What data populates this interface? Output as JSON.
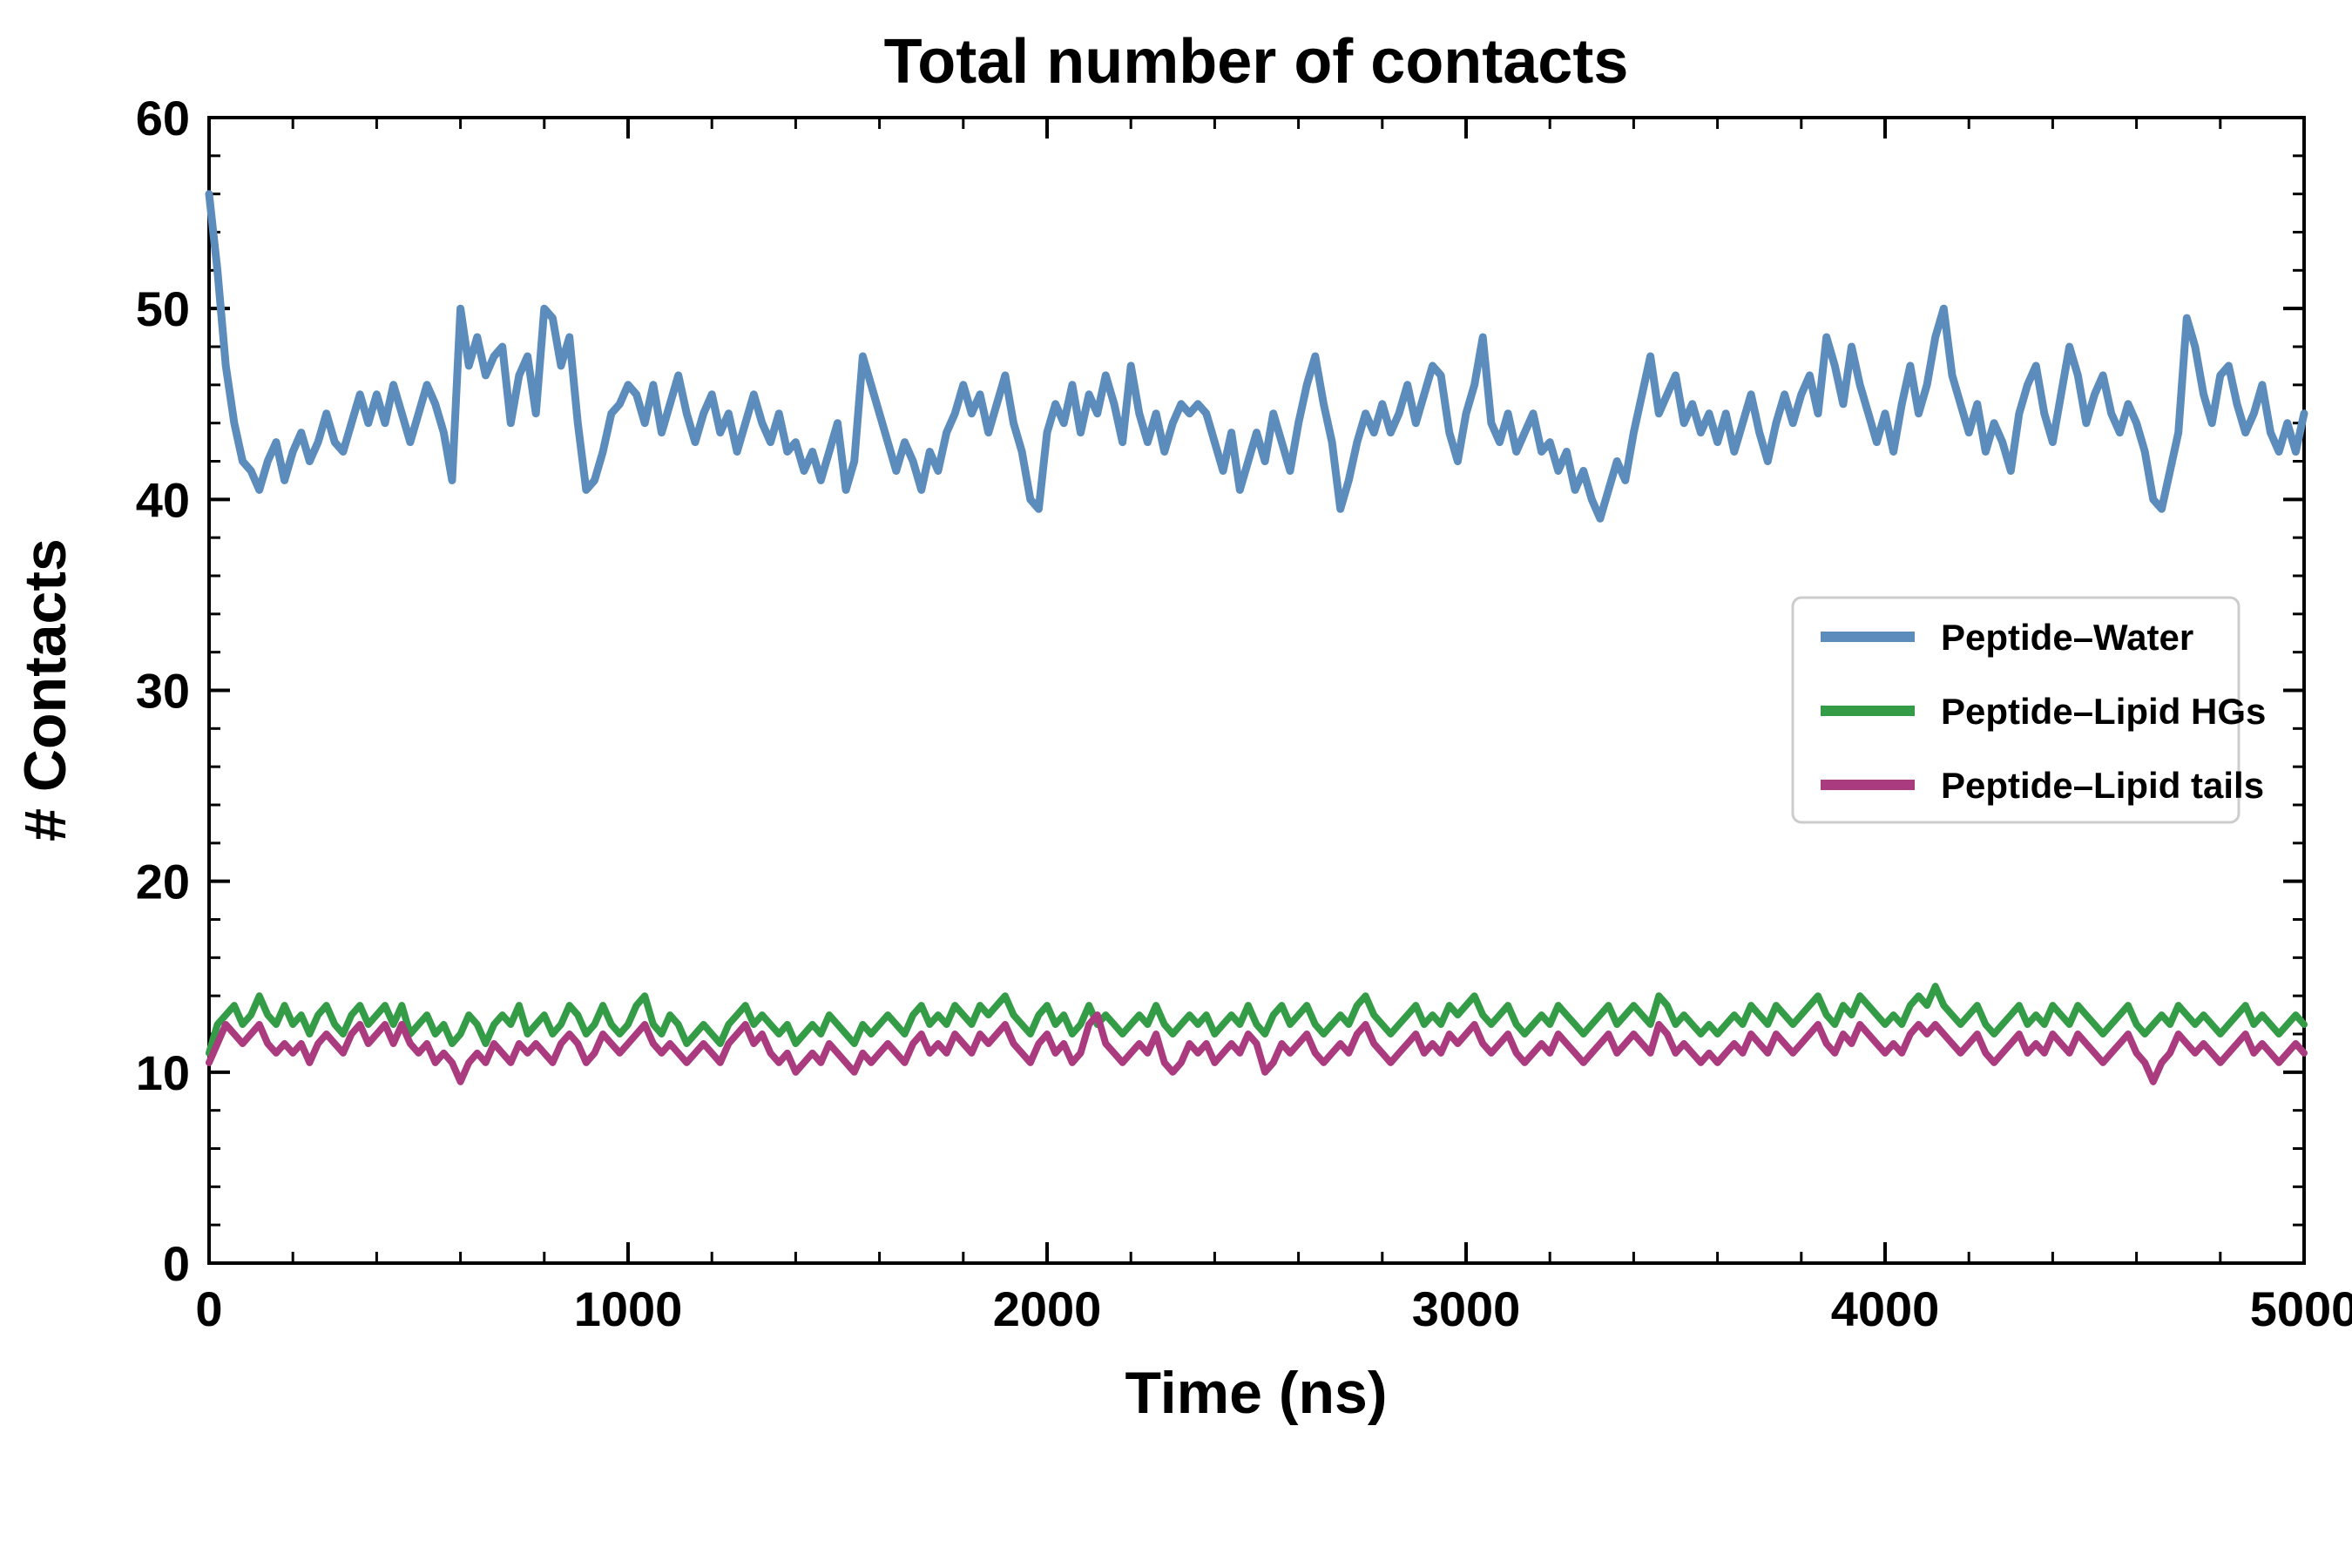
{
  "chart": {
    "title": "Total number of contacts",
    "xlabel": "Time (ns)",
    "ylabel": "# Contacts"
  },
  "axes": {
    "x_ticks": [
      0,
      1000,
      2000,
      3000,
      4000,
      5000
    ],
    "y_ticks": [
      0,
      10,
      20,
      30,
      40,
      50,
      60
    ],
    "x_minor_step": 200,
    "y_minor_step": 2,
    "xlim": [
      0,
      5000
    ],
    "ylim": [
      0,
      60
    ],
    "axis_color": "#000000"
  },
  "legend": {
    "border_color": "#cccccc",
    "background": "#ffffff",
    "items": [
      {
        "label": "Peptide–Water",
        "color": "#5b8cbc"
      },
      {
        "label": "Peptide–Lipid HGs",
        "color": "#349b46"
      },
      {
        "label": "Peptide–Lipid tails",
        "color": "#aa3b7f"
      }
    ]
  },
  "chart_data": {
    "type": "line",
    "title": "Total number of contacts",
    "xlabel": "Time (ns)",
    "ylabel": "# Contacts",
    "xlim": [
      0,
      5000
    ],
    "ylim": [
      0,
      60
    ],
    "grid": false,
    "legend_position": "center right",
    "x_start": 0,
    "x_step": 20,
    "series": [
      {
        "name": "Peptide–Water",
        "color": "#5b8cbc",
        "values": [
          56,
          52,
          47,
          44,
          42,
          41.5,
          40.5,
          42,
          43,
          41,
          42.5,
          43.5,
          42,
          43,
          44.5,
          43,
          42.5,
          44,
          45.5,
          44,
          45.5,
          44,
          46,
          44.5,
          43,
          44.5,
          46,
          45,
          43.5,
          41,
          50,
          47,
          48.5,
          46.5,
          47.5,
          48,
          44,
          46.5,
          47.5,
          44.5,
          50,
          49.5,
          47,
          48.5,
          44,
          40.5,
          41,
          42.5,
          44.5,
          45,
          46,
          45.5,
          44,
          46,
          43.5,
          45,
          46.5,
          44.5,
          43,
          44.5,
          45.5,
          43.5,
          44.5,
          42.5,
          44,
          45.5,
          44,
          43,
          44.5,
          42.5,
          43,
          41.5,
          42.5,
          41,
          42.5,
          44,
          40.5,
          42,
          47.5,
          46,
          44.5,
          43,
          41.5,
          43,
          42,
          40.5,
          42.5,
          41.5,
          43.5,
          44.5,
          46,
          44.5,
          45.5,
          43.5,
          45,
          46.5,
          44,
          42.5,
          40,
          39.5,
          43.5,
          45,
          44,
          46,
          43.5,
          45.5,
          44.5,
          46.5,
          45,
          43,
          47,
          44.5,
          43,
          44.5,
          42.5,
          44,
          45,
          44.5,
          45,
          44.5,
          43,
          41.5,
          43.5,
          40.5,
          42,
          43.5,
          42,
          44.5,
          43,
          41.5,
          44,
          46,
          47.5,
          45,
          43,
          39.5,
          41,
          43,
          44.5,
          43.5,
          45,
          43.5,
          44.5,
          46,
          44,
          45.5,
          47,
          46.5,
          43.5,
          42,
          44.5,
          46,
          48.5,
          44,
          43,
          44.5,
          42.5,
          43.5,
          44.5,
          42.5,
          43,
          41.5,
          42.5,
          40.5,
          41.5,
          40,
          39,
          40.5,
          42,
          41,
          43.5,
          45.5,
          47.5,
          44.5,
          45.5,
          46.5,
          44,
          45,
          43.5,
          44.5,
          43,
          44.5,
          42.5,
          44,
          45.5,
          43.5,
          42,
          44,
          45.5,
          44,
          45.5,
          46.5,
          44.5,
          48.5,
          47,
          45,
          48,
          46,
          44.5,
          43,
          44.5,
          42.5,
          45,
          47,
          44.5,
          46,
          48.5,
          50,
          46.5,
          45,
          43.5,
          45,
          42.5,
          44,
          43,
          41.5,
          44.5,
          46,
          47,
          44.5,
          43,
          45.5,
          48,
          46.5,
          44,
          45.5,
          46.5,
          44.5,
          43.5,
          45,
          44,
          42.5,
          40,
          39.5,
          41.5,
          43.5,
          49.5,
          48,
          45.5,
          44,
          46.5,
          47,
          45,
          43.5,
          44.5,
          46,
          43.5,
          42.5,
          44,
          42.5,
          44.5
        ]
      },
      {
        "name": "Peptide–Lipid HGs",
        "color": "#349b46",
        "values": [
          11,
          12.5,
          13,
          13.5,
          12.5,
          13,
          14,
          13,
          12.5,
          13.5,
          12.5,
          13,
          12,
          13,
          13.5,
          12.5,
          12,
          13,
          13.5,
          12.5,
          13,
          13.5,
          12.5,
          13.5,
          12,
          12.5,
          13,
          12,
          12.5,
          11.5,
          12,
          13,
          12.5,
          11.5,
          12.5,
          13,
          12.5,
          13.5,
          12,
          12.5,
          13,
          12,
          12.5,
          13.5,
          13,
          12,
          12.5,
          13.5,
          12.5,
          12,
          12.5,
          13.5,
          14,
          12.5,
          12,
          13,
          12.5,
          11.5,
          12,
          12.5,
          12,
          11.5,
          12.5,
          13,
          13.5,
          12.5,
          13,
          12.5,
          12,
          12.5,
          11.5,
          12,
          12.5,
          12,
          13,
          12.5,
          12,
          11.5,
          12.5,
          12,
          12.5,
          13,
          12.5,
          12,
          13,
          13.5,
          12.5,
          13,
          12.5,
          13.5,
          13,
          12.5,
          13.5,
          13,
          13.5,
          14,
          13,
          12.5,
          12,
          13,
          13.5,
          12.5,
          13,
          12,
          12.5,
          13.5,
          12.5,
          13,
          12.5,
          12,
          12.5,
          13,
          12.5,
          13.5,
          12.5,
          12,
          12.5,
          13,
          12.5,
          13,
          12,
          12.5,
          13,
          12.5,
          13.5,
          12.5,
          12,
          13,
          13.5,
          12.5,
          13,
          13.5,
          12.5,
          12,
          12.5,
          13,
          12.5,
          13.5,
          14,
          13,
          12.5,
          12,
          12.5,
          13,
          13.5,
          12.5,
          13,
          12.5,
          13.5,
          13,
          13.5,
          14,
          13,
          12.5,
          13,
          13.5,
          12.5,
          12,
          12.5,
          13,
          12.5,
          13.5,
          13,
          12.5,
          12,
          12.5,
          13,
          13.5,
          12.5,
          13,
          13.5,
          13,
          12.5,
          14,
          13.5,
          12.5,
          13,
          12.5,
          12,
          12.5,
          12,
          12.5,
          13,
          12.5,
          13.5,
          13,
          12.5,
          13.5,
          13,
          12.5,
          13,
          13.5,
          14,
          13,
          12.5,
          13.5,
          13,
          14,
          13.5,
          13,
          12.5,
          13,
          12.5,
          13.5,
          14,
          13.5,
          14.5,
          13.5,
          13,
          12.5,
          13,
          13.5,
          12.5,
          12,
          12.5,
          13,
          13.5,
          12.5,
          13,
          12.5,
          13.5,
          13,
          12.5,
          13.5,
          13,
          12.5,
          12,
          12.5,
          13,
          13.5,
          12.5,
          12,
          12.5,
          13,
          12.5,
          13.5,
          13,
          12.5,
          13,
          12.5,
          12,
          12.5,
          13,
          13.5,
          12.5,
          13,
          12.5,
          12,
          12.5,
          13,
          12.5
        ]
      },
      {
        "name": "Peptide–Lipid tails",
        "color": "#aa3b7f",
        "values": [
          10.5,
          11.5,
          12.5,
          12,
          11.5,
          12,
          12.5,
          11.5,
          11,
          11.5,
          11,
          11.5,
          10.5,
          11.5,
          12,
          11.5,
          11,
          12,
          12.5,
          11.5,
          12,
          12.5,
          11.5,
          12.5,
          11.5,
          11,
          11.5,
          10.5,
          11,
          10.5,
          9.5,
          10.5,
          11,
          10.5,
          11.5,
          11,
          10.5,
          11.5,
          11,
          11.5,
          11,
          10.5,
          11.5,
          12,
          11.5,
          10.5,
          11,
          12,
          11.5,
          11,
          11.5,
          12,
          12.5,
          11.5,
          11,
          11.5,
          11,
          10.5,
          11,
          11.5,
          11,
          10.5,
          11.5,
          12,
          12.5,
          11.5,
          12,
          11,
          10.5,
          11,
          10,
          10.5,
          11,
          10.5,
          11.5,
          11,
          10.5,
          10,
          11,
          10.5,
          11,
          11.5,
          11,
          10.5,
          11.5,
          12,
          11,
          11.5,
          11,
          12,
          11.5,
          11,
          12,
          11.5,
          12,
          12.5,
          11.5,
          11,
          10.5,
          11.5,
          12,
          11,
          11.5,
          10.5,
          11,
          12.5,
          13,
          11.5,
          11,
          10.5,
          11,
          11.5,
          11,
          12,
          10.5,
          10,
          10.5,
          11.5,
          11,
          11.5,
          10.5,
          11,
          11.5,
          11,
          12,
          11.5,
          10,
          10.5,
          11.5,
          11,
          11.5,
          12,
          11,
          10.5,
          11,
          11.5,
          11,
          12,
          12.5,
          11.5,
          11,
          10.5,
          11,
          11.5,
          12,
          11,
          11.5,
          11,
          12,
          11.5,
          12,
          12.5,
          11.5,
          11,
          11.5,
          12,
          11,
          10.5,
          11,
          11.5,
          11,
          12,
          11.5,
          11,
          10.5,
          11,
          11.5,
          12,
          11,
          11.5,
          12,
          11.5,
          11,
          12.5,
          12,
          11,
          11.5,
          11,
          10.5,
          11,
          10.5,
          11,
          11.5,
          11,
          12,
          11.5,
          11,
          12,
          11.5,
          11,
          11.5,
          12,
          12.5,
          11.5,
          11,
          12,
          11.5,
          12.5,
          12,
          11.5,
          11,
          11.5,
          11,
          12,
          12.5,
          12,
          12.5,
          12,
          11.5,
          11,
          11.5,
          12,
          11,
          10.5,
          11,
          11.5,
          12,
          11,
          11.5,
          11,
          12,
          11.5,
          11,
          12,
          11.5,
          11,
          10.5,
          11,
          11.5,
          12,
          11,
          10.5,
          9.5,
          10.5,
          11,
          12,
          11.5,
          11,
          11.5,
          11,
          10.5,
          11,
          11.5,
          12,
          11,
          11.5,
          11,
          10.5,
          11,
          11.5,
          11
        ]
      }
    ]
  }
}
